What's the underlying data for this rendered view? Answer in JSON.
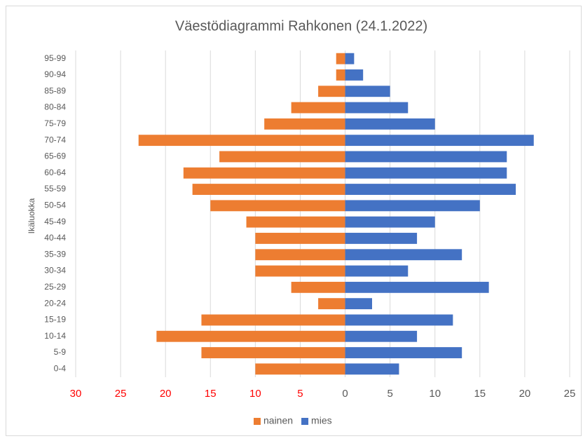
{
  "chart_data": {
    "type": "pyramid",
    "title": "Väestödiagrammi Rahkonen (24.1.2022)",
    "y_axis_label": "Ikäluokka",
    "categories": [
      "0-4",
      "5-9",
      "10-14",
      "15-19",
      "20-24",
      "25-29",
      "30-34",
      "35-39",
      "40-44",
      "45-49",
      "50-54",
      "55-59",
      "60-64",
      "65-69",
      "70-74",
      "75-79",
      "80-84",
      "85-89",
      "90-94",
      "95-99"
    ],
    "series": [
      {
        "name": "nainen",
        "color": "#ed7d31",
        "values": [
          -10,
          -16,
          -21,
          -16,
          -3,
          -6,
          -10,
          -10,
          -10,
          -11,
          -15,
          -17,
          -18,
          -14,
          -23,
          -9,
          -6,
          -3,
          -1,
          -1
        ]
      },
      {
        "name": "mies",
        "color": "#4472c4",
        "values": [
          6,
          13,
          8,
          12,
          3,
          16,
          7,
          13,
          8,
          10,
          15,
          19,
          18,
          18,
          21,
          10,
          7,
          5,
          2,
          1
        ]
      }
    ],
    "xlim": [
      -30,
      25
    ],
    "xticks": [
      {
        "value": -30,
        "label": "30"
      },
      {
        "value": -25,
        "label": "25"
      },
      {
        "value": -20,
        "label": "20"
      },
      {
        "value": -15,
        "label": "15"
      },
      {
        "value": -10,
        "label": "10"
      },
      {
        "value": -5,
        "label": "5"
      },
      0,
      5,
      10,
      15,
      20,
      25
    ],
    "negative_tick_color": "#ff0000",
    "grid": true,
    "legend": "bottom"
  }
}
